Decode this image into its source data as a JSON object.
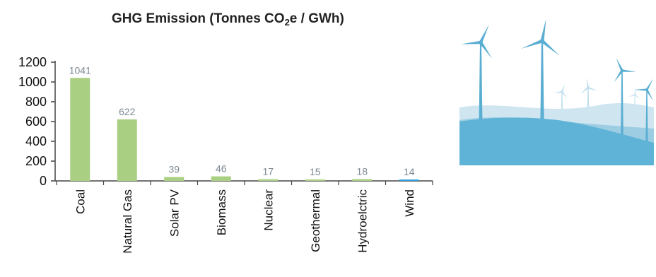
{
  "chart_data": {
    "type": "bar",
    "title_parts": [
      "GHG Emission (Tonnes CO",
      "2",
      "e / GWh)"
    ],
    "categories": [
      "Coal",
      "Natural Gas",
      "Solar PV",
      "Biomass",
      "Nuclear",
      "Geothermal",
      "Hydroelctric",
      "Wind"
    ],
    "values": [
      1041,
      622,
      39,
      46,
      17,
      15,
      18,
      14
    ],
    "ylim": [
      0,
      1200
    ],
    "yticks": [
      0,
      200,
      400,
      600,
      800,
      1000,
      1200
    ],
    "highlight_category": "Wind",
    "colors": {
      "bar": "#a9cf82",
      "highlight_bar": "#2a9fd9",
      "highlight_text": "#1aa0e0",
      "data_label": "#7d8a94",
      "axis": "#444444"
    }
  },
  "illustration": {
    "name": "wind-turbines-illustration",
    "colors": {
      "sky": "#ffffff",
      "hill_far": "#cfe6f1",
      "hill_mid": "#9ccde3",
      "hill_front": "#5fb3d6",
      "turbine": "#5aaed2"
    }
  }
}
